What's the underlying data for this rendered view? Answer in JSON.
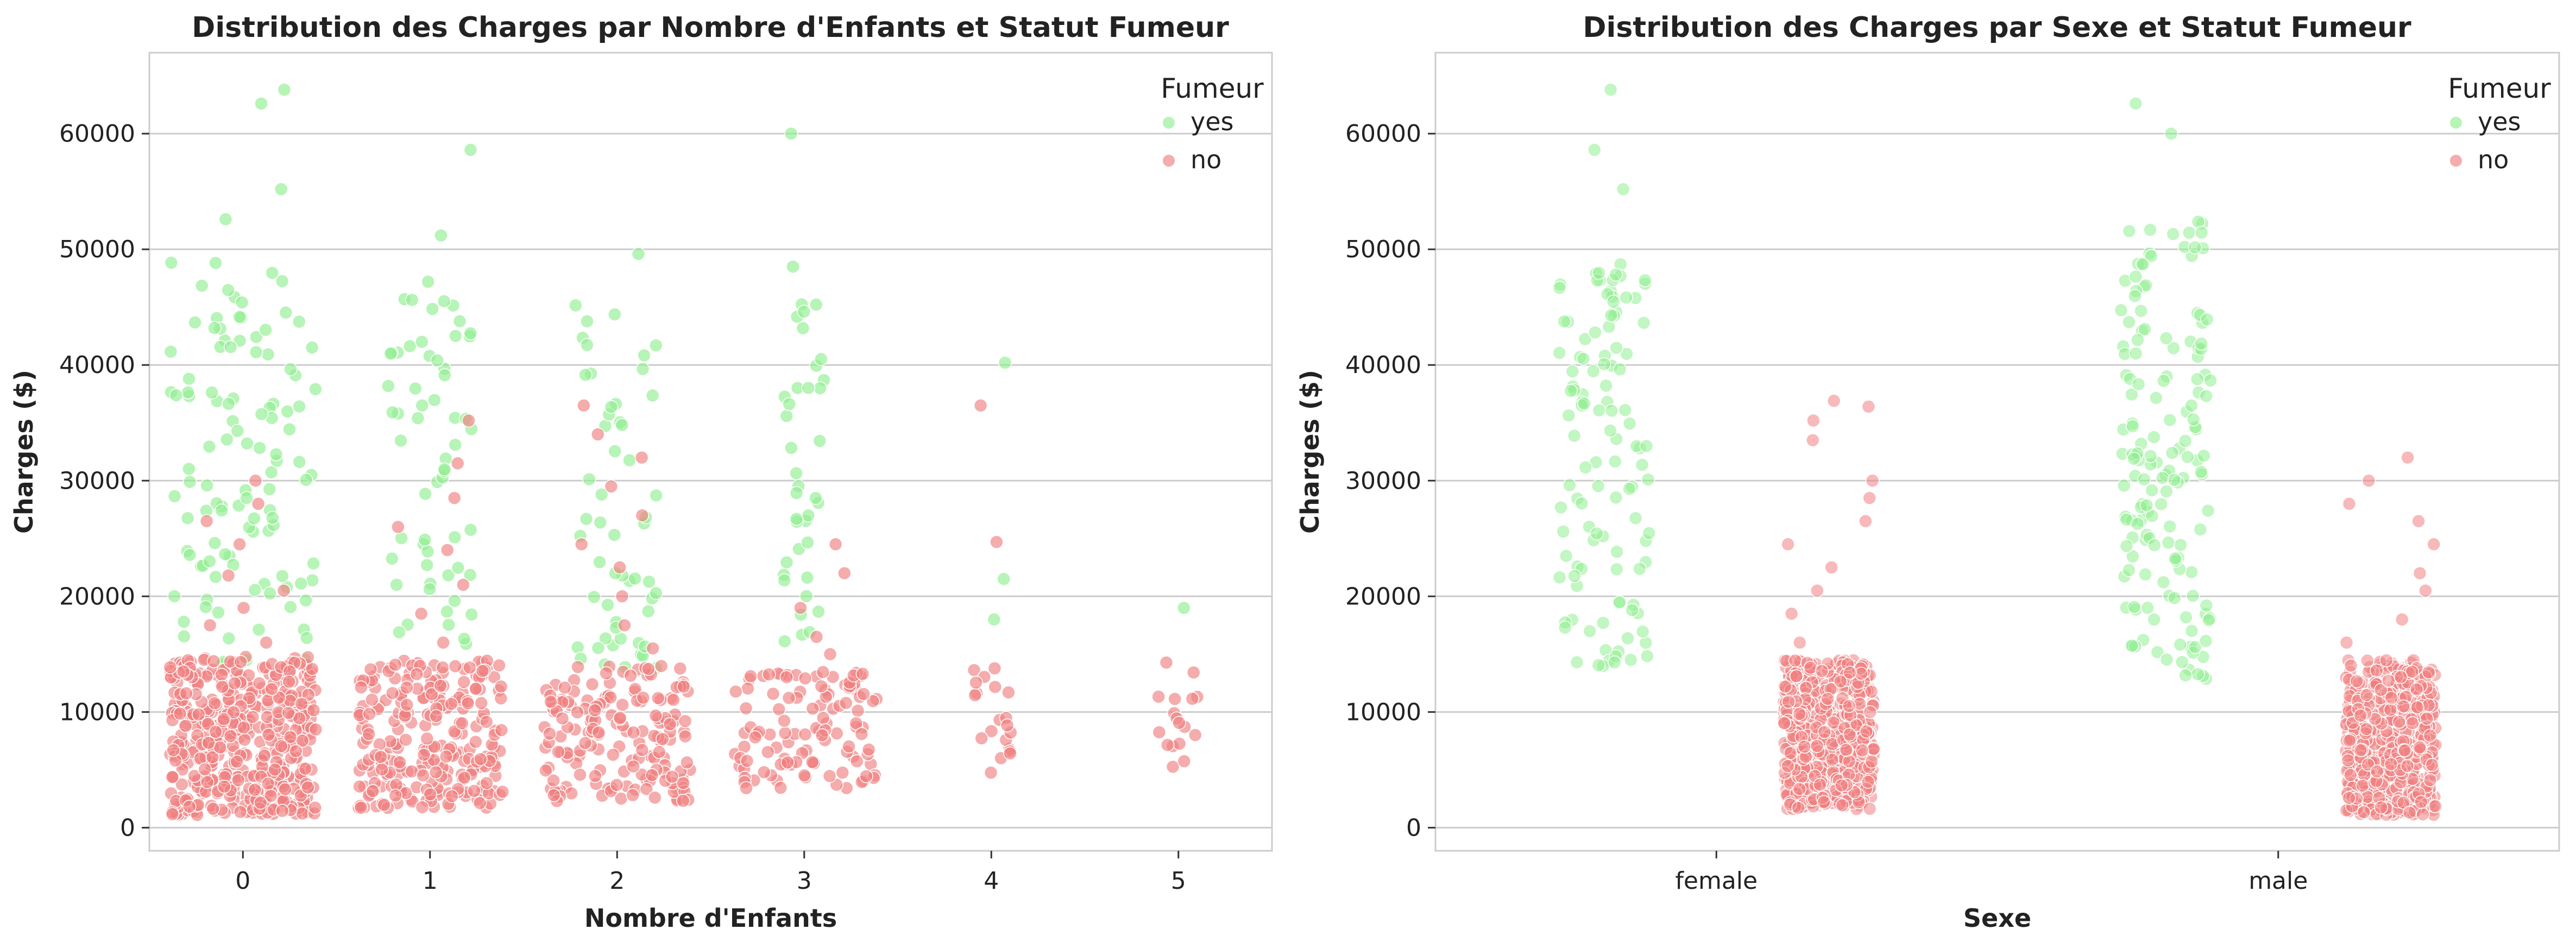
{
  "chart_data": [
    {
      "type": "scatter",
      "subtype": "swarm",
      "title": "Distribution des Charges par Nombre d'Enfants et Statut Fumeur",
      "xlabel": "Nombre d'Enfants",
      "ylabel": "Charges ($)",
      "categories": [
        "0",
        "1",
        "2",
        "3",
        "4",
        "5"
      ],
      "ylim": [
        -2000,
        67000
      ],
      "yticks": [
        0,
        10000,
        20000,
        30000,
        40000,
        50000,
        60000
      ],
      "grid": "horizontal",
      "legend": {
        "title": "Fumeur",
        "placement": "top-right",
        "entries": [
          "yes",
          "no"
        ]
      },
      "series": [
        {
          "name": "yes",
          "color": "#90ee90",
          "by_category": {
            "0": {
              "count": 115,
              "low": 14000,
              "high": 49000,
              "extreme": [
                52600,
                55200,
                62600,
                63800
              ]
            },
            "1": {
              "count": 61,
              "low": 15300,
              "high": 49000,
              "extreme": [
                51200,
                58600
              ]
            },
            "2": {
              "count": 55,
              "low": 13500,
              "high": 47500,
              "extreme": [
                49600
              ]
            },
            "3": {
              "count": 39,
              "low": 16000,
              "high": 46600,
              "extreme": [
                48500,
                60000
              ]
            },
            "4": {
              "count": 3,
              "values": [
                18000,
                21500,
                40200
              ]
            },
            "5": {
              "count": 1,
              "values": [
                19000
              ]
            }
          }
        },
        {
          "name": "no",
          "color": "#f08080",
          "by_category": {
            "0": {
              "count": 459,
              "low": 1100,
              "high": 14800,
              "extreme": [
                16000,
                17500,
                19000,
                20500,
                21800,
                24500,
                26500,
                28000,
                30000
              ]
            },
            "1": {
              "count": 263,
              "low": 1700,
              "high": 14500,
              "extreme": [
                16000,
                18500,
                21000,
                24000,
                26000,
                28500,
                31500,
                35200
              ]
            },
            "2": {
              "count": 185,
              "low": 2300,
              "high": 14000,
              "extreme": [
                15500,
                17500,
                20000,
                22500,
                24500,
                27000,
                29500,
                32000,
                34000,
                36500
              ]
            },
            "3": {
              "count": 118,
              "low": 3400,
              "high": 13500,
              "extreme": [
                15000,
                16500,
                19000,
                22000,
                24500
              ]
            },
            "4": {
              "count": 22,
              "low": 4500,
              "high": 14000,
              "extreme": [
                24700,
                36500
              ]
            },
            "5": {
              "count": 17,
              "low": 4700,
              "high": 14700,
              "extreme": []
            }
          }
        }
      ]
    },
    {
      "type": "scatter",
      "subtype": "strip",
      "title": "Distribution des Charges par Sexe et Statut Fumeur",
      "xlabel": "Sexe",
      "ylabel": "Charges ($)",
      "categories": [
        "female",
        "male"
      ],
      "ylim": [
        -2000,
        67000
      ],
      "yticks": [
        0,
        10000,
        20000,
        30000,
        40000,
        50000,
        60000
      ],
      "grid": "horizontal",
      "legend": {
        "title": "Fumeur",
        "placement": "top-right",
        "entries": [
          "yes",
          "no"
        ]
      },
      "series": [
        {
          "name": "yes",
          "color": "#90ee90",
          "by_category": {
            "female": {
              "count": 115,
              "low": 13900,
              "high": 49000,
              "extreme": [
                55200,
                58600,
                63800
              ]
            },
            "male": {
              "count": 159,
              "low": 12800,
              "high": 52600,
              "extreme": [
                60000,
                62600
              ]
            }
          }
        },
        {
          "name": "no",
          "color": "#f08080",
          "by_category": {
            "female": {
              "count": 547,
              "low": 1600,
              "high": 14500,
              "extreme": [
                16000,
                18500,
                20500,
                22500,
                24500,
                26500,
                28500,
                30000,
                33500,
                35200,
                36400,
                36900
              ]
            },
            "male": {
              "count": 517,
              "low": 1100,
              "high": 14500,
              "extreme": [
                16000,
                18000,
                20500,
                22000,
                24500,
                26500,
                28000,
                30000,
                32000
              ]
            }
          }
        }
      ]
    }
  ]
}
